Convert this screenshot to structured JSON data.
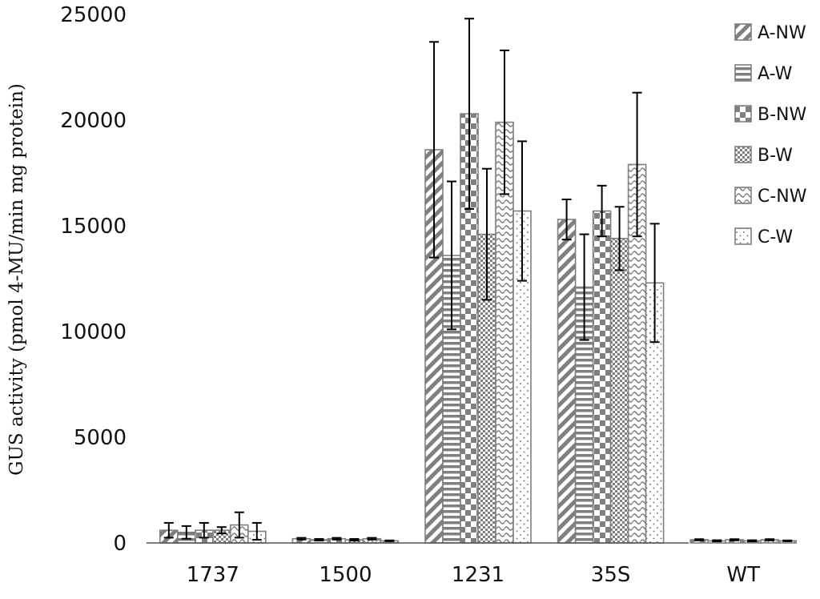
{
  "chart_data": {
    "type": "bar",
    "title": "",
    "xlabel": "",
    "ylabel": "GUS activity  (pmol  4-MU/min  mg protein)",
    "ylim": [
      0,
      25000
    ],
    "yticks": [
      0,
      5000,
      10000,
      15000,
      20000,
      25000
    ],
    "categories": [
      "1737",
      "1500",
      "1231",
      "35S",
      "WT"
    ],
    "grid": false,
    "legend_position": "right",
    "series": [
      {
        "name": "A-NW",
        "pattern": "diagonal-stripes",
        "values": [
          600,
          200,
          18600,
          15300,
          150
        ],
        "errors": [
          350,
          40,
          5100,
          950,
          30
        ]
      },
      {
        "name": "A-W",
        "pattern": "horizontal-stripes",
        "values": [
          500,
          150,
          13600,
          12100,
          100
        ],
        "errors": [
          300,
          40,
          3500,
          2500,
          30
        ]
      },
      {
        "name": "B-NW",
        "pattern": "large-checker",
        "values": [
          600,
          200,
          20300,
          15700,
          150
        ],
        "errors": [
          350,
          40,
          4500,
          1200,
          30
        ]
      },
      {
        "name": "B-W",
        "pattern": "small-checker",
        "values": [
          600,
          150,
          14600,
          14400,
          100
        ],
        "errors": [
          150,
          40,
          3100,
          1500,
          30
        ]
      },
      {
        "name": "C-NW",
        "pattern": "wavy",
        "values": [
          850,
          200,
          19900,
          17900,
          150
        ],
        "errors": [
          600,
          40,
          3400,
          3400,
          30
        ]
      },
      {
        "name": "C-W",
        "pattern": "dotted",
        "values": [
          550,
          100,
          15700,
          12300,
          100
        ],
        "errors": [
          400,
          20,
          3300,
          2800,
          20
        ]
      }
    ],
    "colors": {
      "bar_stroke": "#7f7f7f",
      "pattern": "#7f7f7f",
      "error_bar": "#000000",
      "axis": "#555555"
    }
  }
}
